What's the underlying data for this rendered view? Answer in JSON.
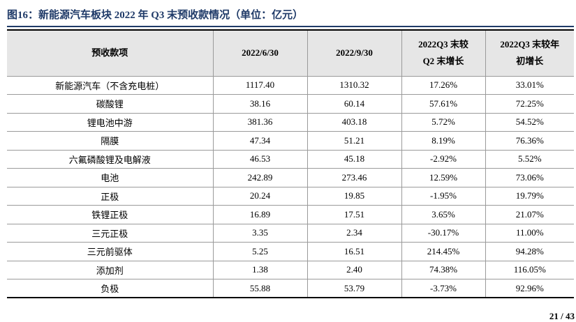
{
  "title": "图16：新能源汽车板块 2022 年 Q3 末预收款情况（单位：亿元）",
  "table": {
    "header": [
      "预收款项",
      "2022/6/30",
      "2022/9/30",
      "2022Q3 末较\nQ2 末增长",
      "2022Q3 末较年\n初增长"
    ],
    "rows": [
      [
        "新能源汽车（不含充电桩）",
        "1117.40",
        "1310.32",
        "17.26%",
        "33.01%"
      ],
      [
        "碳酸锂",
        "38.16",
        "60.14",
        "57.61%",
        "72.25%"
      ],
      [
        "锂电池中游",
        "381.36",
        "403.18",
        "5.72%",
        "54.52%"
      ],
      [
        "隔膜",
        "47.34",
        "51.21",
        "8.19%",
        "76.36%"
      ],
      [
        "六氟磷酸锂及电解液",
        "46.53",
        "45.18",
        "-2.92%",
        "5.52%"
      ],
      [
        "电池",
        "242.89",
        "273.46",
        "12.59%",
        "73.06%"
      ],
      [
        "正极",
        "20.24",
        "19.85",
        "-1.95%",
        "19.79%"
      ],
      [
        "铁锂正极",
        "16.89",
        "17.51",
        "3.65%",
        "21.07%"
      ],
      [
        "三元正极",
        "3.35",
        "2.34",
        "-30.17%",
        "11.00%"
      ],
      [
        "三元前驱体",
        "5.25",
        "16.51",
        "214.45%",
        "94.28%"
      ],
      [
        "添加剂",
        "1.38",
        "2.40",
        "74.38%",
        "116.05%"
      ],
      [
        "负极",
        "55.88",
        "53.79",
        "-3.73%",
        "92.96%"
      ]
    ]
  },
  "page_number": "21 / 43"
}
